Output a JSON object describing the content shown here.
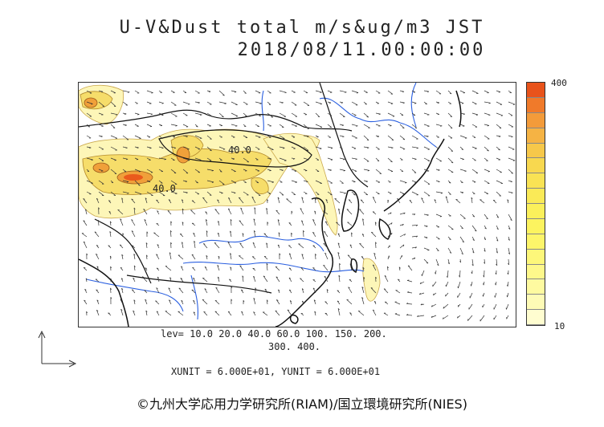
{
  "title": {
    "line1": "U-V&Dust total m/s&ug/m3 JST",
    "line2": "2018/08/11.00:00:00"
  },
  "colorbar": {
    "max_label": "400",
    "min_label": "10",
    "colors": [
      "#e8531b",
      "#f07a2a",
      "#f39b3a",
      "#f5b344",
      "#f7c84a",
      "#f8d84f",
      "#f9e354",
      "#faea57",
      "#fbf05b",
      "#fcf35f",
      "#fdf56a",
      "#fdf77a",
      "#fef88b",
      "#fefaa0",
      "#fefbb6",
      "#fffdd0"
    ]
  },
  "contour_labels": [
    "40.0",
    "40.0"
  ],
  "levels": {
    "line1": "lev= 10.0 20.0 40.0 60.0 100. 150. 200.",
    "line2": "300. 400."
  },
  "units": "XUNIT = 6.000E+01, YUNIT = 6.000E+01",
  "copyright": "©九州大学応用力学研究所(RIAM)/国立環境研究所(NIES)",
  "colors": {
    "coast": "#111111",
    "rivers": "#2a5fe0",
    "dust_light": "#fdf6b8",
    "dust_mid": "#f6dd6a",
    "dust_high": "#ea5a1c",
    "vectors": "#333333"
  }
}
